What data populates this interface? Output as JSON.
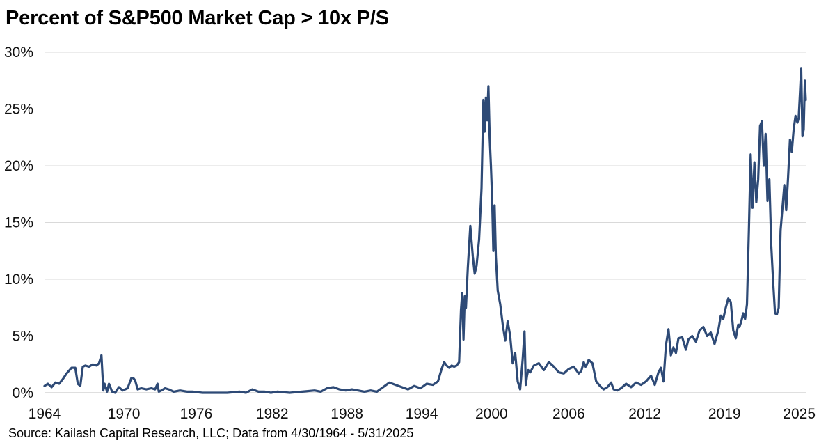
{
  "title": "Percent of S&P500 Market Cap > 10x P/S",
  "source": "Source: Kailash Capital Research, LLC; Data from 4/30/1964 - 5/31/2025",
  "colors": {
    "series": "#2e4a76",
    "grid": "#d9d9d9"
  },
  "chart_data": {
    "type": "line",
    "title": "Percent of S&P500 Market Cap > 10x P/S",
    "xlabel": "",
    "ylabel": "",
    "grid": true,
    "xlim": [
      1964.33,
      2025.42
    ],
    "ylim": [
      0,
      30
    ],
    "y_ticks": [
      0,
      5,
      10,
      15,
      20,
      25,
      30
    ],
    "y_tick_labels": [
      "0%",
      "5%",
      "10%",
      "15%",
      "20%",
      "25%",
      "30%"
    ],
    "x_ticks": [
      1964.33,
      1970.7,
      1976.5,
      1982.6,
      1988.6,
      1994.6,
      2000.2,
      2006.4,
      2012.5,
      2018.9,
      2024.9
    ],
    "x_tick_labels": [
      "1964",
      "1970",
      "1976",
      "1982",
      "1988",
      "1994",
      "2000",
      "2006",
      "2012",
      "2019",
      "2025"
    ],
    "series": [
      {
        "name": "",
        "x": [
          1964.33,
          1964.6,
          1964.9,
          1965.2,
          1965.5,
          1965.8,
          1966.1,
          1966.5,
          1966.8,
          1967.0,
          1967.2,
          1967.4,
          1967.6,
          1967.9,
          1968.2,
          1968.5,
          1968.7,
          1968.9,
          1969.05,
          1969.15,
          1969.35,
          1969.5,
          1969.75,
          1970.0,
          1970.3,
          1970.6,
          1971.0,
          1971.3,
          1971.45,
          1971.6,
          1971.8,
          1972.1,
          1972.5,
          1972.9,
          1973.2,
          1973.4,
          1973.5,
          1973.7,
          1974.0,
          1974.3,
          1974.7,
          1975.2,
          1975.8,
          1976.2,
          1977.0,
          1978.0,
          1979.0,
          1980.0,
          1980.5,
          1981.0,
          1981.5,
          1982.0,
          1982.5,
          1983.0,
          1984.0,
          1985.0,
          1986.0,
          1986.5,
          1987.0,
          1987.5,
          1988.0,
          1988.5,
          1989.0,
          1989.5,
          1990.0,
          1990.5,
          1991.0,
          1991.5,
          1992.0,
          1992.5,
          1993.0,
          1993.5,
          1994.0,
          1994.5,
          1995.0,
          1995.5,
          1995.9,
          1996.2,
          1996.4,
          1996.6,
          1996.8,
          1997.0,
          1997.2,
          1997.4,
          1997.6,
          1997.75,
          1997.85,
          1997.95,
          1998.05,
          1998.15,
          1998.3,
          1998.5,
          1998.7,
          1998.85,
          1999.0,
          1999.2,
          1999.4,
          1999.55,
          1999.65,
          1999.75,
          1999.85,
          1999.95,
          2000.05,
          2000.15,
          2000.25,
          2000.35,
          2000.45,
          2000.55,
          2000.7,
          2000.9,
          2001.1,
          2001.3,
          2001.5,
          2001.7,
          2001.9,
          2002.1,
          2002.3,
          2002.5,
          2002.7,
          2002.85,
          2002.95,
          2003.05,
          2003.15,
          2003.3,
          2003.6,
          2004.0,
          2004.4,
          2004.8,
          2005.2,
          2005.6,
          2006.0,
          2006.4,
          2006.8,
          2007.0,
          2007.2,
          2007.4,
          2007.6,
          2007.75,
          2007.85,
          2008.0,
          2008.3,
          2008.6,
          2008.9,
          2009.2,
          2009.5,
          2009.8,
          2010.0,
          2010.3,
          2010.6,
          2011.0,
          2011.4,
          2011.8,
          2012.2,
          2012.6,
          2013.0,
          2013.3,
          2013.6,
          2013.8,
          2014.0,
          2014.2,
          2014.4,
          2014.6,
          2014.8,
          2015.0,
          2015.2,
          2015.5,
          2015.8,
          2016.0,
          2016.3,
          2016.6,
          2016.9,
          2017.2,
          2017.5,
          2017.8,
          2018.1,
          2018.4,
          2018.6,
          2018.8,
          2019.0,
          2019.2,
          2019.4,
          2019.6,
          2019.8,
          2020.0,
          2020.1,
          2020.25,
          2020.4,
          2020.55,
          2020.7,
          2020.85,
          2021.0,
          2021.15,
          2021.3,
          2021.45,
          2021.6,
          2021.75,
          2021.9,
          2022.05,
          2022.2,
          2022.35,
          2022.5,
          2022.65,
          2022.8,
          2022.95,
          2023.1,
          2023.25,
          2023.4,
          2023.55,
          2023.7,
          2023.85,
          2024.0,
          2024.15,
          2024.3,
          2024.45,
          2024.6,
          2024.75,
          2024.85,
          2024.95,
          2025.05,
          2025.15,
          2025.25,
          2025.35,
          2025.42
        ],
        "y": [
          0.6,
          0.8,
          0.5,
          0.9,
          0.8,
          1.2,
          1.7,
          2.2,
          2.2,
          0.8,
          0.6,
          2.3,
          2.4,
          2.3,
          2.5,
          2.4,
          2.6,
          3.3,
          0.2,
          0.8,
          0.1,
          0.8,
          0.1,
          0.0,
          0.5,
          0.2,
          0.4,
          1.3,
          1.3,
          1.1,
          0.3,
          0.4,
          0.3,
          0.4,
          0.3,
          0.8,
          0.1,
          0.2,
          0.4,
          0.3,
          0.1,
          0.2,
          0.1,
          0.1,
          0.0,
          0.0,
          0.0,
          0.1,
          0.0,
          0.3,
          0.1,
          0.1,
          0.0,
          0.1,
          0.0,
          0.1,
          0.2,
          0.1,
          0.4,
          0.5,
          0.3,
          0.2,
          0.3,
          0.2,
          0.1,
          0.2,
          0.1,
          0.5,
          0.9,
          0.7,
          0.5,
          0.3,
          0.6,
          0.4,
          0.8,
          0.7,
          1.0,
          2.1,
          2.7,
          2.4,
          2.2,
          2.4,
          2.3,
          2.4,
          2.7,
          7.3,
          8.8,
          4.7,
          8.5,
          7.5,
          11.0,
          14.7,
          12.0,
          10.5,
          11.2,
          13.5,
          18.0,
          25.8,
          23.0,
          26.0,
          24.0,
          27.0,
          22.5,
          20.0,
          17.0,
          12.5,
          16.5,
          12.0,
          9.0,
          7.8,
          6.0,
          4.6,
          6.3,
          5.0,
          2.6,
          3.5,
          1.0,
          0.3,
          2.9,
          5.4,
          0.7,
          1.5,
          2.0,
          1.8,
          2.4,
          2.6,
          2.0,
          2.7,
          2.3,
          1.8,
          1.7,
          2.1,
          2.3,
          2.0,
          1.7,
          1.9,
          2.7,
          2.3,
          2.5,
          2.9,
          2.6,
          1.0,
          0.6,
          0.3,
          0.5,
          0.9,
          0.3,
          0.2,
          0.4,
          0.8,
          0.5,
          0.9,
          0.7,
          1.0,
          1.5,
          0.7,
          1.8,
          2.2,
          1.0,
          4.2,
          5.6,
          3.3,
          4.0,
          3.5,
          4.8,
          4.9,
          3.8,
          4.7,
          5.0,
          4.5,
          5.5,
          5.8,
          5.0,
          5.3,
          4.3,
          5.5,
          6.8,
          6.5,
          7.5,
          8.3,
          8.0,
          5.5,
          4.8,
          6.0,
          5.8,
          6.3,
          7.0,
          6.5,
          7.8,
          14.2,
          21.0,
          16.3,
          20.3,
          16.8,
          18.8,
          23.5,
          23.9,
          20.0,
          22.8,
          16.9,
          18.8,
          13.0,
          9.8,
          7.0,
          6.9,
          7.5,
          14.3,
          16.3,
          18.3,
          16.1,
          19.0,
          22.3,
          21.2,
          23.2,
          24.4,
          23.8,
          24.2,
          26.3,
          28.6,
          22.6,
          23.2,
          27.5,
          25.8
        ]
      }
    ]
  }
}
